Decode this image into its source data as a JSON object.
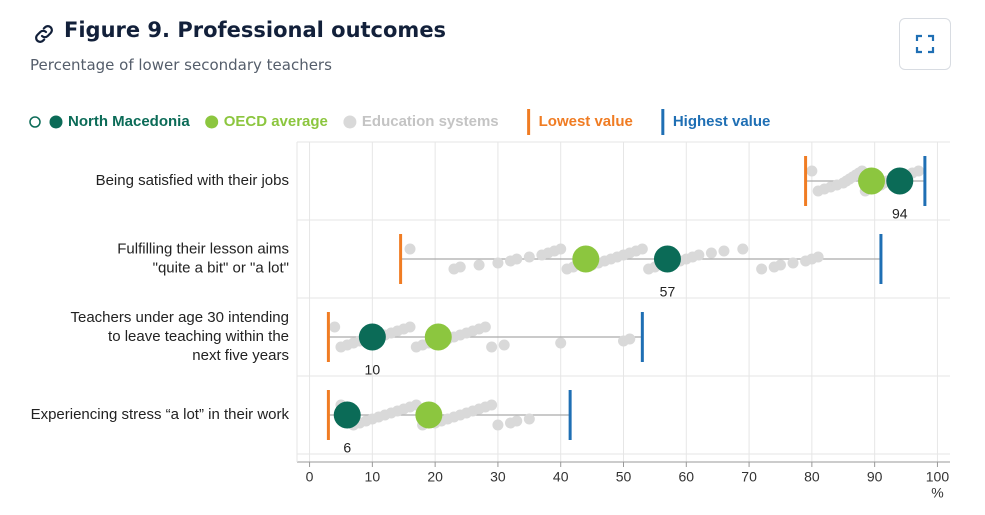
{
  "header": {
    "title": "Figure 9. Professional outcomes",
    "subtitle": "Percentage of lower secondary teachers"
  },
  "chart_data": {
    "type": "dot",
    "categories": [
      [
        "Being satisfied with their jobs"
      ],
      [
        "Fulfilling their lesson aims",
        "\"quite a bit\" or \"a lot\""
      ],
      [
        "Teachers under age 30 intending",
        "to leave teaching within the",
        "next five years"
      ],
      [
        "Experiencing stress “a lot” in their work"
      ]
    ],
    "series": [
      {
        "name": "Education systems",
        "marker": "small-dot",
        "color": "#d9d9d9",
        "text_color": "#c4c4c4",
        "values": [
          [
            80,
            81,
            82,
            83,
            84,
            85,
            85.5,
            86,
            86.5,
            87,
            87.5,
            88,
            88.5,
            89,
            90,
            91,
            91.5,
            92,
            93,
            94.5,
            95,
            96,
            97
          ],
          [
            16,
            23,
            24,
            27,
            30,
            32,
            33,
            35,
            37,
            38,
            39,
            40,
            41,
            42,
            45,
            46,
            47,
            48,
            49,
            50,
            51,
            52,
            53,
            54,
            55,
            56,
            58,
            59,
            60,
            61,
            62,
            64,
            66,
            69,
            72,
            74,
            75,
            77,
            79,
            80,
            81
          ],
          [
            4,
            5,
            6,
            7,
            8,
            9,
            11,
            12,
            13,
            14,
            15,
            16,
            17,
            18,
            19,
            21,
            22,
            23,
            24,
            25,
            26,
            27,
            28,
            29,
            31,
            40,
            50,
            51
          ],
          [
            5,
            7,
            8,
            9,
            10,
            11,
            12,
            13,
            14,
            15,
            16,
            17,
            18,
            20,
            21,
            22,
            23,
            24,
            25,
            26,
            27,
            28,
            29,
            30,
            32,
            33,
            35
          ]
        ]
      },
      {
        "name": "Lowest value",
        "marker": "tick",
        "color": "#f07c23",
        "text_color": "#f07c23",
        "values": [
          79,
          14.5,
          3,
          3
        ]
      },
      {
        "name": "Highest value",
        "marker": "tick",
        "color": "#1f6fb4",
        "text_color": "#1f6fb4",
        "values": [
          98,
          91,
          53,
          41.5
        ]
      },
      {
        "name": "OECD average",
        "marker": "dot",
        "color": "#8cc63f",
        "text_color": "#8cc63f",
        "values": [
          89.5,
          44,
          20.5,
          19
        ]
      },
      {
        "name": "North Macedonia",
        "marker": "dot",
        "color": "#0b6b57",
        "text_color": "#0b6b57",
        "values": [
          94,
          57,
          10,
          6
        ],
        "show_labels": true
      }
    ],
    "legend_order": [
      4,
      3,
      0,
      1,
      2
    ],
    "xlim": [
      -2,
      102
    ],
    "xticks": [
      0,
      10,
      20,
      30,
      40,
      50,
      60,
      70,
      80,
      90,
      100
    ],
    "xlabel": "%",
    "grid": true
  }
}
